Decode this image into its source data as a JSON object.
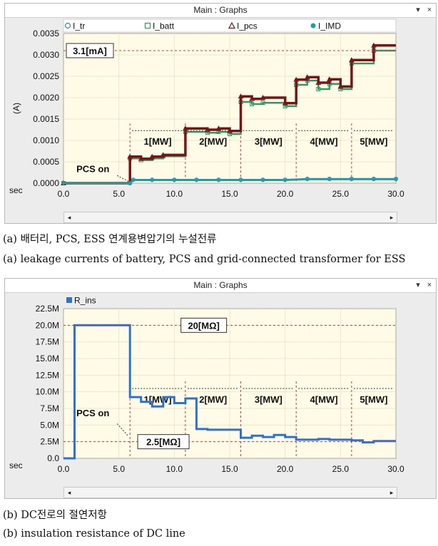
{
  "window_title": "Main : Graphs",
  "window_controls": {
    "pin": "▾",
    "close": "×"
  },
  "chart_data": [
    {
      "type": "line",
      "xlabel": "sec",
      "ylabel": "(A)",
      "xlim": [
        0,
        30
      ],
      "ylim": [
        0,
        0.0035
      ],
      "xticks": [
        "0.0",
        "5.0",
        "10.0",
        "15.0",
        "20.0",
        "25.0",
        "30.0"
      ],
      "yticks": [
        "0.0000",
        "0.0005",
        "0.0010",
        "0.0015",
        "0.0020",
        "0.0025",
        "0.0030",
        "0.0035"
      ],
      "grid": true,
      "legend_placement": "top",
      "series": [
        {
          "name": "I_tr",
          "color": "#3b7fd1",
          "marker": "circle-open",
          "x": [
            0,
            6,
            6.3,
            8,
            10,
            12,
            14,
            16,
            18,
            20,
            22,
            24,
            26,
            28,
            30
          ],
          "y": [
            0,
            0,
            8e-05,
            8e-05,
            8e-05,
            8e-05,
            8e-05,
            8e-05,
            8e-05,
            8e-05,
            0.0001,
            0.0001,
            0.0001,
            0.0001,
            0.0001
          ]
        },
        {
          "name": "I_batt",
          "color": "#2e9a66",
          "marker": "square-open",
          "x": [
            0,
            6,
            6,
            7,
            7,
            8,
            8,
            9,
            9,
            11,
            11,
            13,
            13,
            14,
            14,
            15,
            15,
            16,
            16,
            17,
            17,
            18,
            18,
            20,
            20,
            21,
            21,
            22,
            22,
            23,
            23,
            24,
            24,
            25,
            25,
            26,
            26,
            28,
            28,
            30
          ],
          "y": [
            0,
            0,
            0.00058,
            0.00058,
            0.00054,
            0.00054,
            0.00058,
            0.00058,
            0.00063,
            0.00063,
            0.0012,
            0.0012,
            0.00118,
            0.00118,
            0.0012,
            0.0012,
            0.00115,
            0.00115,
            0.0019,
            0.0019,
            0.00185,
            0.00185,
            0.00188,
            0.00188,
            0.0018,
            0.0018,
            0.0023,
            0.0023,
            0.0024,
            0.0024,
            0.0022,
            0.0022,
            0.00232,
            0.00232,
            0.0022,
            0.0022,
            0.0028,
            0.0028,
            0.0031,
            0.0031
          ]
        },
        {
          "name": "I_pcs",
          "color": "#7a1414",
          "marker": "triangle-open",
          "x": [
            0,
            6,
            6,
            7,
            7,
            8,
            8,
            9,
            9,
            11,
            11,
            13,
            13,
            14,
            14,
            15,
            15,
            16,
            16,
            17,
            17,
            18,
            18,
            20,
            20,
            21,
            21,
            22,
            22,
            23,
            23,
            24,
            24,
            25,
            25,
            26,
            26,
            28,
            28,
            30
          ],
          "y": [
            0,
            0,
            0.00062,
            0.00062,
            0.00057,
            0.00057,
            0.00062,
            0.00062,
            0.00066,
            0.00066,
            0.00128,
            0.00128,
            0.00125,
            0.00125,
            0.00128,
            0.00128,
            0.00122,
            0.00122,
            0.00203,
            0.00203,
            0.00197,
            0.00197,
            0.002,
            0.002,
            0.00187,
            0.00187,
            0.00242,
            0.00242,
            0.00248,
            0.00248,
            0.00235,
            0.00235,
            0.00243,
            0.00243,
            0.00226,
            0.00226,
            0.00288,
            0.00288,
            0.00322,
            0.00322
          ]
        },
        {
          "name": "I_IMD",
          "color": "#1fa0a0",
          "marker": "circle-filled",
          "x": [
            0,
            6,
            6.3,
            8,
            10,
            12,
            14,
            16,
            18,
            20,
            22,
            24,
            26,
            28,
            30
          ],
          "y": [
            0,
            0,
            7e-05,
            7e-05,
            7e-05,
            7e-05,
            7e-05,
            7e-05,
            7e-05,
            7e-05,
            9e-05,
            9e-05,
            9e-05,
            9e-05,
            9e-05
          ]
        }
      ],
      "annotations": {
        "level_label": "3.1[mA]",
        "level_value": 0.0031,
        "pcs_on": "PCS on",
        "pcs_on_time": 6,
        "steps": [
          {
            "label": "1[MW]",
            "from": 6,
            "to": 11
          },
          {
            "label": "2[MW]",
            "from": 11,
            "to": 16
          },
          {
            "label": "3[MW]",
            "from": 16,
            "to": 21
          },
          {
            "label": "4[MW]",
            "from": 21,
            "to": 26
          },
          {
            "label": "5[MW]",
            "from": 26,
            "to": 30
          }
        ]
      }
    },
    {
      "type": "line",
      "xlabel": "sec",
      "ylabel": "",
      "xlim": [
        0,
        30
      ],
      "ylim": [
        0,
        22500000
      ],
      "xticks": [
        "0.0",
        "5.0",
        "10.0",
        "15.0",
        "20.0",
        "25.0",
        "30.0"
      ],
      "yticks": [
        "0.0",
        "2.5M",
        "5.0M",
        "7.5M",
        "10.0M",
        "12.5M",
        "15.0M",
        "17.5M",
        "20.0M",
        "22.5M"
      ],
      "grid": true,
      "legend_placement": "top-left",
      "series": [
        {
          "name": "R_ins",
          "color": "#2b73d1",
          "marker": "none",
          "x": [
            0,
            1,
            1,
            6,
            6,
            7,
            7,
            8,
            8,
            9,
            9,
            10,
            10,
            11,
            11,
            12,
            12,
            13,
            13,
            16,
            16,
            17,
            17,
            18,
            18,
            19,
            19,
            20,
            20,
            21,
            21,
            23,
            23,
            24,
            24,
            26,
            26,
            27,
            27,
            28,
            28,
            30
          ],
          "y": [
            0,
            0,
            20000000,
            20000000,
            9200000,
            9200000,
            8500000,
            8500000,
            7800000,
            7800000,
            9200000,
            9200000,
            8300000,
            8300000,
            9000000,
            9000000,
            4400000,
            4400000,
            4300000,
            4300000,
            3100000,
            3100000,
            3400000,
            3400000,
            3200000,
            3200000,
            3500000,
            3500000,
            3200000,
            3200000,
            2800000,
            2800000,
            2900000,
            2900000,
            2800000,
            2800000,
            2700000,
            2700000,
            2400000,
            2400000,
            2600000,
            2600000
          ]
        }
      ],
      "annotations": {
        "upper_label": "20[MΩ]",
        "upper_value": 20000000,
        "lower_label": "2.5[MΩ]",
        "lower_value": 2500000,
        "pcs_on": "PCS on",
        "pcs_on_time": 6,
        "steps": [
          {
            "label": "1[MW]",
            "from": 6,
            "to": 11
          },
          {
            "label": "2[MW]",
            "from": 11,
            "to": 16
          },
          {
            "label": "3[MW]",
            "from": 16,
            "to": 21
          },
          {
            "label": "4[MW]",
            "from": 21,
            "to": 26
          },
          {
            "label": "5[MW]",
            "from": 26,
            "to": 30
          }
        ]
      }
    }
  ],
  "captions": {
    "a_korean": "(a) 배터리, PCS, ESS 연계용변압기의 누설전류",
    "a_english": "(a) leakage currents of battery, PCS and grid-connected transformer for ESS",
    "b_korean": "(b) DC전로의 절연저항",
    "b_english": "(b) insulation resistance of DC line"
  },
  "scroll_arrows": {
    "left": "◂",
    "right": "▸"
  }
}
